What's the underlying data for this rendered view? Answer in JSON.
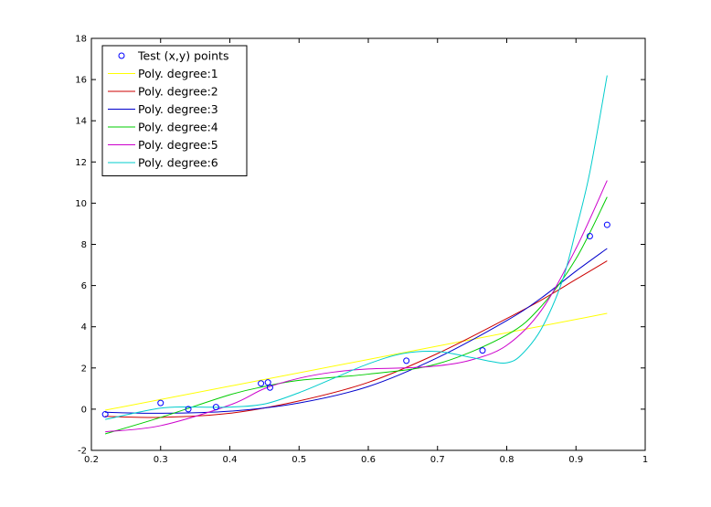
{
  "chart_data": {
    "type": "line",
    "title": "",
    "xlabel": "",
    "ylabel": "",
    "xlim": [
      0.2,
      1.0
    ],
    "ylim": [
      -2,
      18
    ],
    "xticks": [
      0.2,
      0.3,
      0.4,
      0.5,
      0.6,
      0.7,
      0.8,
      0.9,
      1
    ],
    "yticks": [
      -2,
      0,
      2,
      4,
      6,
      8,
      10,
      12,
      14,
      16,
      18
    ],
    "grid": false,
    "legend_position": "top-left",
    "scatter": {
      "name": "Test (x,y) points",
      "color": "#0000ff",
      "x": [
        0.22,
        0.3,
        0.34,
        0.38,
        0.445,
        0.455,
        0.458,
        0.655,
        0.765,
        0.92,
        0.945
      ],
      "y": [
        -0.25,
        0.3,
        0.0,
        0.1,
        1.25,
        1.3,
        1.05,
        2.35,
        2.85,
        8.4,
        8.95
      ]
    },
    "series": [
      {
        "name": "Poly. degree:1",
        "color": "#ffff00",
        "x": [
          0.22,
          0.945
        ],
        "y": [
          -0.05,
          4.65
        ]
      },
      {
        "name": "Poly. degree:2",
        "color": "#cc0000",
        "x": [
          0.22,
          0.3,
          0.4,
          0.5,
          0.6,
          0.7,
          0.8,
          0.85,
          0.9,
          0.945
        ],
        "y": [
          -0.35,
          -0.4,
          -0.2,
          0.4,
          1.3,
          2.7,
          4.4,
          5.3,
          6.3,
          7.2
        ]
      },
      {
        "name": "Poly. degree:3",
        "color": "#0000cc",
        "x": [
          0.22,
          0.3,
          0.4,
          0.5,
          0.6,
          0.7,
          0.8,
          0.85,
          0.9,
          0.945
        ],
        "y": [
          -0.15,
          -0.2,
          -0.1,
          0.3,
          1.1,
          2.5,
          4.3,
          5.4,
          6.7,
          7.8
        ]
      },
      {
        "name": "Poly. degree:4",
        "color": "#00cc00",
        "x": [
          0.22,
          0.3,
          0.4,
          0.45,
          0.5,
          0.6,
          0.7,
          0.8,
          0.85,
          0.9,
          0.945
        ],
        "y": [
          -1.2,
          -0.4,
          0.7,
          1.1,
          1.4,
          1.7,
          2.2,
          3.6,
          5.0,
          7.3,
          10.3
        ]
      },
      {
        "name": "Poly. degree:5",
        "color": "#cc00cc",
        "x": [
          0.22,
          0.3,
          0.4,
          0.45,
          0.5,
          0.55,
          0.6,
          0.65,
          0.7,
          0.75,
          0.8,
          0.85,
          0.9,
          0.945
        ],
        "y": [
          -1.1,
          -0.8,
          0.2,
          1.0,
          1.5,
          1.8,
          1.95,
          2.0,
          2.1,
          2.4,
          3.1,
          4.8,
          7.8,
          11.1
        ]
      },
      {
        "name": "Poly. degree:6",
        "color": "#00cccc",
        "x": [
          0.22,
          0.3,
          0.35,
          0.4,
          0.45,
          0.5,
          0.55,
          0.6,
          0.65,
          0.7,
          0.75,
          0.78,
          0.8,
          0.82,
          0.85,
          0.88,
          0.9,
          0.92,
          0.945
        ],
        "y": [
          -0.5,
          0.05,
          0.1,
          0.1,
          0.25,
          0.8,
          1.5,
          2.2,
          2.7,
          2.8,
          2.5,
          2.3,
          2.25,
          2.6,
          3.9,
          6.2,
          8.7,
          11.5,
          16.2
        ]
      }
    ]
  }
}
